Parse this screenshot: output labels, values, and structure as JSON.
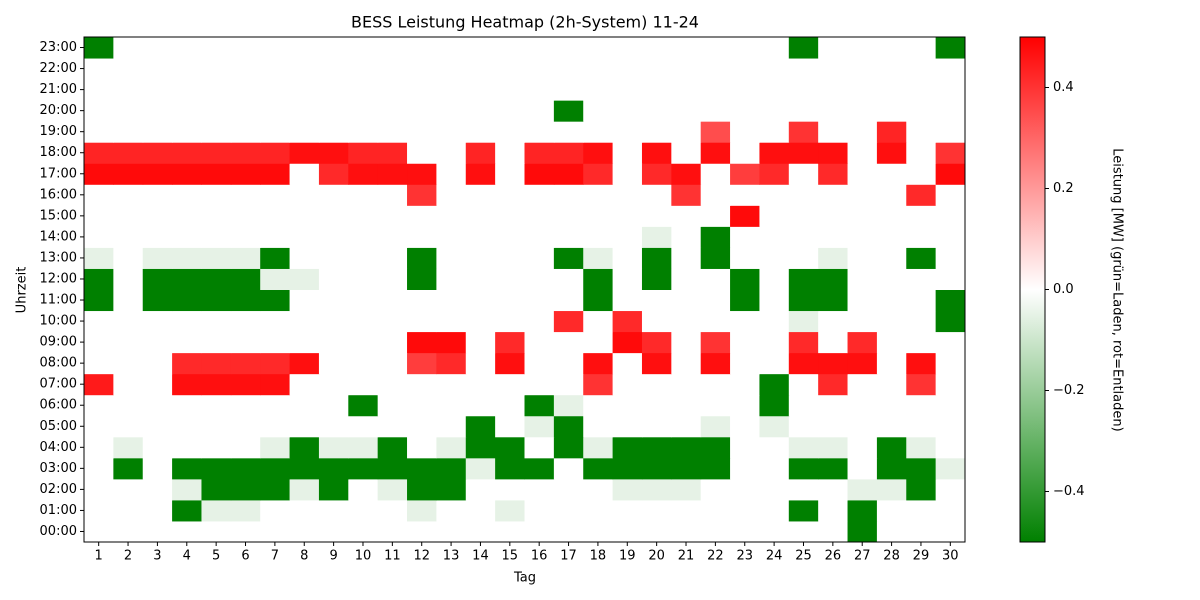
{
  "chart_data": {
    "type": "heatmap",
    "title": "BESS Leistung Heatmap (2h-System) 11-24",
    "xlabel": "Tag",
    "ylabel": "Uhrzeit",
    "colorbar_label": "Leistung [MW] (grün=Laden, rot=Entladen)",
    "x": [
      "1",
      "2",
      "3",
      "4",
      "5",
      "6",
      "7",
      "8",
      "9",
      "10",
      "11",
      "12",
      "13",
      "14",
      "15",
      "16",
      "17",
      "18",
      "19",
      "20",
      "21",
      "22",
      "23",
      "24",
      "25",
      "26",
      "27",
      "28",
      "29",
      "30"
    ],
    "y": [
      "00:00",
      "01:00",
      "02:00",
      "03:00",
      "04:00",
      "05:00",
      "06:00",
      "07:00",
      "08:00",
      "09:00",
      "10:00",
      "11:00",
      "12:00",
      "13:00",
      "14:00",
      "15:00",
      "16:00",
      "17:00",
      "18:00",
      "19:00",
      "20:00",
      "21:00",
      "22:00",
      "23:00"
    ],
    "colors": [
      "#008000",
      "#ffffff",
      "#ff0000"
    ],
    "zlim": [
      -0.5,
      0.5
    ],
    "zticks": [
      {
        "value": -0.4,
        "label": "−0.4"
      },
      {
        "value": -0.2,
        "label": "−0.2"
      },
      {
        "value": 0,
        "label": "0.0"
      },
      0.2,
      0.4
    ],
    "values": [
      [
        0,
        0,
        0,
        0,
        0,
        0,
        0,
        0,
        0,
        0,
        0,
        0,
        0,
        0,
        0,
        0,
        0,
        0,
        0,
        0,
        0,
        0,
        0,
        0,
        0,
        0,
        -0.5,
        0,
        0,
        0
      ],
      [
        0,
        0,
        0,
        -0.5,
        -0.05,
        -0.05,
        0,
        0,
        0,
        0,
        0,
        -0.05,
        0,
        0,
        -0.05,
        0,
        0,
        0,
        0,
        0,
        0,
        0,
        0,
        0,
        -0.5,
        0,
        -0.5,
        0,
        0,
        0
      ],
      [
        0,
        0,
        0,
        -0.05,
        -0.5,
        -0.5,
        -0.5,
        -0.05,
        -0.5,
        0,
        -0.05,
        -0.5,
        -0.5,
        0,
        0,
        0,
        0,
        0,
        -0.05,
        -0.05,
        -0.05,
        0,
        0,
        0,
        0,
        0,
        -0.05,
        -0.05,
        -0.5,
        0
      ],
      [
        0,
        -0.5,
        0,
        -0.5,
        -0.5,
        -0.5,
        -0.5,
        -0.5,
        -0.5,
        -0.5,
        -0.5,
        -0.5,
        -0.5,
        -0.05,
        -0.5,
        -0.5,
        0,
        -0.5,
        -0.5,
        -0.5,
        -0.5,
        -0.5,
        0,
        0,
        -0.5,
        -0.5,
        0,
        -0.5,
        -0.5,
        -0.05
      ],
      [
        0,
        -0.05,
        0,
        0,
        0,
        0,
        -0.05,
        -0.5,
        -0.05,
        -0.05,
        -0.5,
        0,
        -0.05,
        -0.5,
        -0.5,
        0,
        -0.5,
        -0.05,
        -0.5,
        -0.5,
        -0.5,
        -0.5,
        0,
        0,
        -0.05,
        -0.05,
        0,
        -0.5,
        -0.05,
        0
      ],
      [
        0,
        0,
        0,
        0,
        0,
        0,
        0,
        0,
        0,
        0,
        0,
        0,
        0,
        -0.5,
        0,
        -0.05,
        -0.5,
        0,
        0,
        0,
        0,
        -0.05,
        0,
        -0.05,
        0,
        0,
        0,
        0,
        0,
        0
      ],
      [
        0,
        0,
        0,
        0,
        0,
        0,
        0,
        0,
        0,
        -0.5,
        0,
        0,
        0,
        0,
        0,
        -0.5,
        -0.05,
        0,
        0,
        0,
        0,
        0,
        0,
        -0.5,
        0,
        0,
        0,
        0,
        0,
        0
      ],
      [
        0.45,
        0,
        0,
        0.47,
        0.47,
        0.47,
        0.47,
        0,
        0,
        0,
        0,
        0,
        0,
        0,
        0,
        0,
        0,
        0.4,
        0,
        0,
        0,
        0,
        0,
        -0.5,
        0,
        0.42,
        0,
        0,
        0.4,
        0
      ],
      [
        0,
        0,
        0,
        0.42,
        0.42,
        0.42,
        0.42,
        0.47,
        0,
        0,
        0,
        0.38,
        0.42,
        0,
        0.47,
        0,
        0,
        0.47,
        0,
        0.47,
        0,
        0.47,
        0,
        0,
        0.47,
        0.47,
        0.47,
        0,
        0.47,
        0
      ],
      [
        0,
        0,
        0,
        0,
        0,
        0,
        0,
        0,
        0,
        0,
        0,
        0.48,
        0.48,
        0,
        0.42,
        0,
        0,
        0,
        0.48,
        0.42,
        0,
        0.4,
        0,
        0,
        0.42,
        0,
        0.42,
        0,
        0,
        0
      ],
      [
        0,
        0,
        0,
        0,
        0,
        0,
        0,
        0,
        0,
        0,
        0,
        0,
        0,
        0,
        0,
        0,
        0.42,
        0,
        0.42,
        0,
        0,
        0,
        0,
        0,
        -0.05,
        0,
        0,
        0,
        0,
        -0.5
      ],
      [
        -0.5,
        0,
        -0.5,
        -0.5,
        -0.5,
        -0.5,
        -0.5,
        0,
        0,
        0,
        0,
        0,
        0,
        0,
        0,
        0,
        0,
        -0.5,
        0,
        0,
        0,
        0,
        -0.5,
        0,
        -0.5,
        -0.5,
        0,
        0,
        0,
        -0.5
      ],
      [
        -0.5,
        0,
        -0.5,
        -0.5,
        -0.5,
        -0.5,
        -0.05,
        -0.05,
        0,
        0,
        0,
        -0.5,
        0,
        0,
        0,
        0,
        0,
        -0.5,
        0,
        -0.5,
        0,
        0,
        -0.5,
        0,
        -0.5,
        -0.5,
        0,
        0,
        0,
        0
      ],
      [
        -0.05,
        0,
        -0.05,
        -0.05,
        -0.05,
        -0.05,
        -0.5,
        0,
        0,
        0,
        0,
        -0.5,
        0,
        0,
        0,
        0,
        -0.5,
        -0.05,
        0,
        -0.5,
        0,
        -0.5,
        0,
        0,
        0,
        -0.05,
        0,
        0,
        -0.5,
        0
      ],
      [
        0,
        0,
        0,
        0,
        0,
        0,
        0,
        0,
        0,
        0,
        0,
        0,
        0,
        0,
        0,
        0,
        0,
        0,
        0,
        -0.05,
        0,
        -0.5,
        0,
        0,
        0,
        0,
        0,
        0,
        0,
        0
      ],
      [
        0,
        0,
        0,
        0,
        0,
        0,
        0,
        0,
        0,
        0,
        0,
        0,
        0,
        0,
        0,
        0,
        0,
        0,
        0,
        0,
        0,
        0,
        0.48,
        0,
        0,
        0,
        0,
        0,
        0,
        0
      ],
      [
        0,
        0,
        0,
        0,
        0,
        0,
        0,
        0,
        0,
        0,
        0,
        0.4,
        0,
        0,
        0,
        0,
        0,
        0,
        0,
        0,
        0.4,
        0,
        0,
        0,
        0,
        0,
        0,
        0,
        0.42,
        0
      ],
      [
        0.48,
        0.48,
        0.48,
        0.48,
        0.48,
        0.48,
        0.48,
        0,
        0.42,
        0.47,
        0.47,
        0.47,
        0,
        0.47,
        0,
        0.48,
        0.48,
        0.42,
        0,
        0.42,
        0.47,
        0,
        0.38,
        0.42,
        0,
        0.42,
        0,
        0,
        0,
        0.48
      ],
      [
        0.43,
        0.43,
        0.43,
        0.43,
        0.43,
        0.43,
        0.43,
        0.47,
        0.47,
        0.43,
        0.43,
        0,
        0,
        0.43,
        0,
        0.43,
        0.43,
        0.47,
        0,
        0.47,
        0,
        0.47,
        0,
        0.47,
        0.47,
        0.47,
        0,
        0.47,
        0,
        0.4
      ],
      [
        0,
        0,
        0,
        0,
        0,
        0,
        0,
        0,
        0,
        0,
        0,
        0,
        0,
        0,
        0,
        0,
        0,
        0,
        0,
        0,
        0,
        0.35,
        0,
        0,
        0.4,
        0,
        0,
        0.43,
        0,
        0
      ],
      [
        0,
        0,
        0,
        0,
        0,
        0,
        0,
        0,
        0,
        0,
        0,
        0,
        0,
        0,
        0,
        0,
        -0.5,
        0,
        0,
        0,
        0,
        0,
        0,
        0,
        0,
        0,
        0,
        0,
        0,
        0
      ],
      [
        0,
        0,
        0,
        0,
        0,
        0,
        0,
        0,
        0,
        0,
        0,
        0,
        0,
        0,
        0,
        0,
        0,
        0,
        0,
        0,
        0,
        0,
        0,
        0,
        0,
        0,
        0,
        0,
        0,
        0
      ],
      [
        0,
        0,
        0,
        0,
        0,
        0,
        0,
        0,
        0,
        0,
        0,
        0,
        0,
        0,
        0,
        0,
        0,
        0,
        0,
        0,
        0,
        0,
        0,
        0,
        0,
        0,
        0,
        0,
        0,
        0
      ],
      [
        -0.5,
        0,
        0,
        0,
        0,
        0,
        0,
        0,
        0,
        0,
        0,
        0,
        0,
        0,
        0,
        0,
        0,
        0,
        0,
        0,
        0,
        0,
        0,
        0,
        -0.5,
        0,
        0,
        0,
        0,
        -0.5
      ]
    ]
  }
}
